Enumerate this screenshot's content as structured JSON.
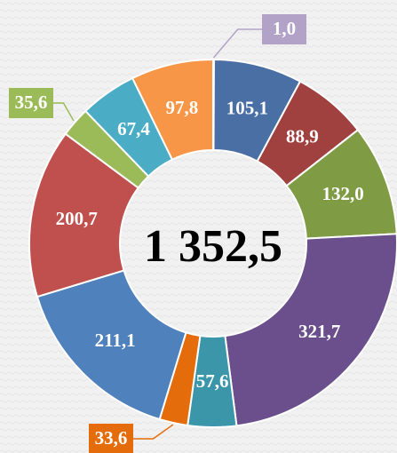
{
  "chart_data": {
    "type": "donut",
    "center_label": "1 352,5",
    "values": [
      1.0,
      105.1,
      88.9,
      132.0,
      321.7,
      57.6,
      33.6,
      211.1,
      200.7,
      35.6,
      67.4,
      97.8
    ],
    "value_labels": [
      "1,0",
      "105,1",
      "88,9",
      "132,0",
      "321,7",
      "57,6",
      "33,6",
      "211,1",
      "200,7",
      "35,6",
      "67,4",
      "97,8"
    ],
    "colors": [
      "#b3a2c7",
      "#4a6fa5",
      "#a0403f",
      "#7f9c45",
      "#6a4f8c",
      "#3c96aa",
      "#e46c0a",
      "#4f81bd",
      "#c0504d",
      "#9bbb59",
      "#4bacc6",
      "#f79646"
    ]
  }
}
